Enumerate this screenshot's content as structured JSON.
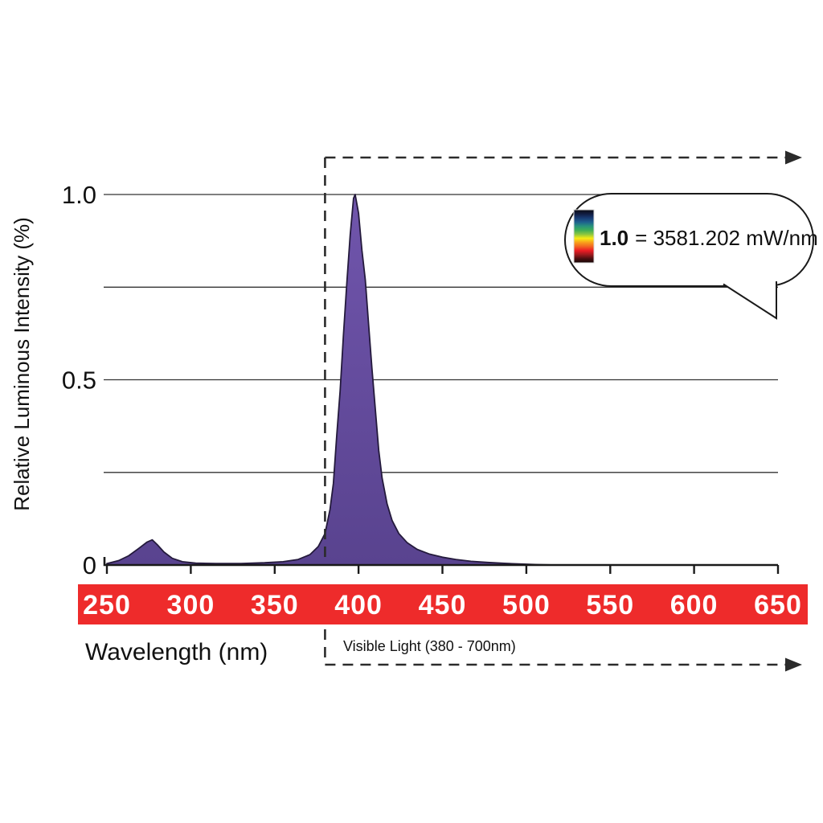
{
  "chart_data": {
    "type": "area",
    "title": "",
    "xlabel": "Wavelength (nm)",
    "ylabel": "Relative Luminous Intensity (%)",
    "xlim": [
      250,
      650
    ],
    "ylim": [
      0,
      1.0
    ],
    "grid": true,
    "legend_position": "none",
    "x_ticks": [
      250,
      300,
      350,
      400,
      450,
      500,
      550,
      600,
      650
    ],
    "y_ticks": [
      {
        "value": 1.0,
        "label": "1.0"
      },
      {
        "value": 0.5,
        "label": "0.5"
      },
      {
        "value": 0,
        "label": "0"
      }
    ],
    "gridlines": [
      0.25,
      0.5,
      0.75,
      1.0
    ],
    "series": [
      {
        "name": "relative-luminous-intensity",
        "peak_nm": 398,
        "secondary_peak_nm": 277,
        "points": [
          [
            250,
            0.004
          ],
          [
            257,
            0.012
          ],
          [
            263,
            0.025
          ],
          [
            269,
            0.045
          ],
          [
            274,
            0.062
          ],
          [
            277,
            0.068
          ],
          [
            280,
            0.055
          ],
          [
            284,
            0.035
          ],
          [
            289,
            0.018
          ],
          [
            295,
            0.009
          ],
          [
            303,
            0.005
          ],
          [
            315,
            0.004
          ],
          [
            330,
            0.004
          ],
          [
            344,
            0.006
          ],
          [
            355,
            0.009
          ],
          [
            364,
            0.015
          ],
          [
            371,
            0.028
          ],
          [
            376,
            0.05
          ],
          [
            380,
            0.085
          ],
          [
            383,
            0.15
          ],
          [
            385,
            0.22
          ],
          [
            387,
            0.35
          ],
          [
            389,
            0.47
          ],
          [
            391,
            0.62
          ],
          [
            393,
            0.76
          ],
          [
            395,
            0.89
          ],
          [
            397,
            0.99
          ],
          [
            398,
            1.0
          ],
          [
            400,
            0.95
          ],
          [
            402,
            0.85
          ],
          [
            404,
            0.77
          ],
          [
            406,
            0.65
          ],
          [
            408,
            0.53
          ],
          [
            410,
            0.42
          ],
          [
            412,
            0.31
          ],
          [
            414,
            0.235
          ],
          [
            417,
            0.165
          ],
          [
            420,
            0.12
          ],
          [
            424,
            0.085
          ],
          [
            429,
            0.06
          ],
          [
            435,
            0.042
          ],
          [
            442,
            0.03
          ],
          [
            450,
            0.021
          ],
          [
            458,
            0.015
          ],
          [
            467,
            0.01
          ],
          [
            477,
            0.007
          ],
          [
            487,
            0.0045
          ],
          [
            497,
            0.0025
          ],
          [
            507,
            0.001
          ],
          [
            517,
            0
          ]
        ]
      }
    ],
    "annotations": {
      "visible_light": {
        "label": "Visible Light (380 - 700nm)",
        "start_nm": 380,
        "end_nm": 700
      },
      "callout": {
        "scale": "1.0",
        "equals": "= 3581.202 mW/nm"
      }
    },
    "colors": {
      "curve_fill_top": "#7055ac",
      "curve_fill_bottom": "#59438f",
      "curve_outline": "#241a3c",
      "axis_band_red": "#ee2b2b",
      "grid_line": "#333333",
      "axis_line": "#1a1a1a",
      "dash_line": "#2b2b2b",
      "tick_label_white": "#ffffff",
      "text_black": "#111111",
      "colorbar_stops": [
        "#0a0a12",
        "#101c40",
        "#173a72",
        "#1e5f8e",
        "#27927c",
        "#3fae57",
        "#8cc63f",
        "#f7ec13",
        "#f9a11b",
        "#f26522",
        "#ed1c24",
        "#9e1a1d",
        "#4a0e10",
        "#120606"
      ]
    }
  }
}
